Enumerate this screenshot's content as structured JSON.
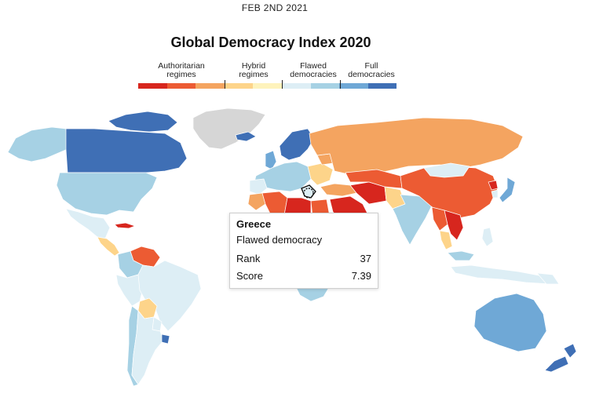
{
  "header": {
    "date": "FEB 2ND 2021",
    "title": "Global Democracy Index 2020"
  },
  "legend": {
    "categories": [
      {
        "label_line1": "Authoritarian",
        "label_line2": "regimes"
      },
      {
        "label_line1": "Hybrid",
        "label_line2": "regimes"
      },
      {
        "label_line1": "Flawed",
        "label_line2": "democracies"
      },
      {
        "label_line1": "Full",
        "label_line2": "democracies"
      }
    ],
    "colors": [
      "#d7261e",
      "#ec5b33",
      "#f4a460",
      "#fdd48a",
      "#fef3bc",
      "#ddeef5",
      "#a6d1e4",
      "#6fa8d6",
      "#3f6fb5"
    ]
  },
  "tooltip": {
    "country": "Greece",
    "classification": "Flawed democracy",
    "rank_label": "Rank",
    "rank_value": "37",
    "score_label": "Score",
    "score_value": "7.39"
  },
  "map_colors": {
    "authoritarian_dark": "#d7261e",
    "authoritarian": "#ec5b33",
    "authoritarian_light": "#f4a460",
    "hybrid": "#fdd48a",
    "flawed_light": "#ddeef5",
    "flawed": "#a6d1e4",
    "full_light": "#6fa8d6",
    "full": "#3f6fb5",
    "no_data": "#d6d6d6"
  }
}
